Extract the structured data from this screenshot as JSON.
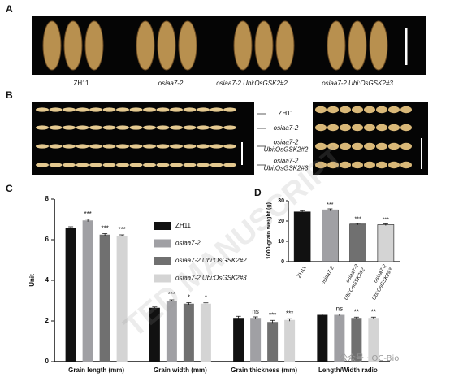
{
  "panel_labels": [
    "A",
    "B",
    "C",
    "D"
  ],
  "panel_a_captions": [
    "ZH11",
    "osiaa7-2",
    "osiaa7-2 Ubi:OsGSK2#2",
    "osiaa7-2 Ubi:OsGSK2#3"
  ],
  "panel_b_labels": [
    [
      "ZH11"
    ],
    [
      "osiaa7-2"
    ],
    [
      "osiaa7-2",
      "Ubi:OsGSK2#2"
    ],
    [
      "osiaa7-2",
      "Ubi:OsGSK2#3"
    ]
  ],
  "watermark": "TED MANUSCRIPT",
  "footer_mark": "公众号 · OC-Bio",
  "chart_data": [
    {
      "type": "bar",
      "ylabel": "Unit",
      "categories": [
        "Grain length (mm)",
        "Grain width (mm)",
        "Grain thickness (mm)",
        "Length/Width radio"
      ],
      "series": [
        {
          "name": "ZH11",
          "color": "#111111",
          "values": [
            6.6,
            2.65,
            2.15,
            2.3
          ],
          "errors": [
            0.04,
            0.04,
            0.08,
            0.04
          ]
        },
        {
          "name": "osiaa7-2",
          "color": "#a0a0a4",
          "values": [
            6.95,
            3.0,
            2.15,
            2.3
          ],
          "errors": [
            0.06,
            0.04,
            0.05,
            0.04
          ],
          "significance": [
            "***",
            "***",
            "ns",
            "ns"
          ]
        },
        {
          "name": "osiaa7-2 Ubi:OsGSK2#2",
          "color": "#707070",
          "values": [
            6.25,
            2.85,
            1.95,
            2.15
          ],
          "errors": [
            0.05,
            0.05,
            0.08,
            0.04
          ],
          "significance": [
            "***",
            "*",
            "***",
            "**"
          ]
        },
        {
          "name": "osiaa7-2 Ubi:OsGSK2#3",
          "color": "#d4d4d4",
          "values": [
            6.2,
            2.85,
            2.05,
            2.15
          ],
          "errors": [
            0.04,
            0.04,
            0.06,
            0.04
          ],
          "significance": [
            "***",
            "*",
            "***",
            "**"
          ]
        }
      ],
      "ylim": [
        0,
        8
      ],
      "yticks": [
        0,
        2,
        4,
        6,
        8
      ]
    },
    {
      "type": "bar",
      "ylabel": "1000-grain weight (g)",
      "categories": [
        [
          "ZH11"
        ],
        [
          "osiaa7-2"
        ],
        [
          "osiaa7-2",
          "Ubi:OsGSK2#2"
        ],
        [
          "osiaa7-2",
          "Ubi:OsGSK2#3"
        ]
      ],
      "values": [
        24.5,
        25.5,
        18.5,
        18.2
      ],
      "errors": [
        0.6,
        0.5,
        0.4,
        0.4
      ],
      "colors": [
        "#111111",
        "#a0a0a4",
        "#707070",
        "#d4d4d4"
      ],
      "significance": [
        null,
        "***",
        "***",
        "***"
      ],
      "ylim": [
        0,
        30
      ],
      "yticks": [
        0,
        10,
        20,
        30
      ]
    }
  ]
}
